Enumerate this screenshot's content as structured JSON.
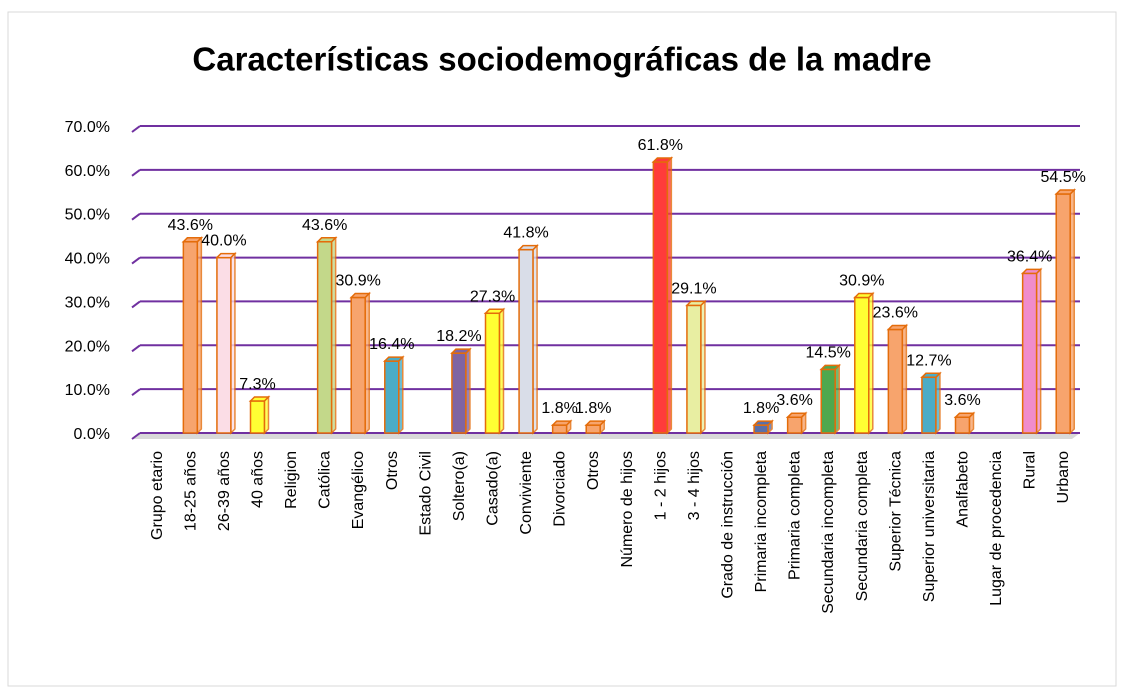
{
  "chart_data": {
    "type": "bar",
    "title": "Características sociodemográficas de la madre",
    "categories": [
      "Grupo etario",
      "18-25 años",
      "26-39 años",
      "40 años",
      "Religion",
      "Católica",
      "Evangélico",
      "Otros",
      "Estado Civil",
      "Soltero(a)",
      "Casado(a)",
      "Conviviente",
      "Divorciado",
      "Otros",
      "Número de hijos",
      "1 - 2 hijos",
      "3 - 4 hijos",
      "Grado de instrucción",
      "Primaria incompleta",
      "Primaria completa",
      "Secundaria incompleta",
      "Secundaria completa",
      "Superior Técnica",
      "Superior universitaria",
      "Analfabeto",
      "Lugar de procedencia",
      "Rural",
      "Urbano"
    ],
    "values": [
      null,
      43.6,
      40.0,
      7.3,
      null,
      43.6,
      30.9,
      16.4,
      null,
      18.2,
      27.3,
      41.8,
      1.8,
      1.8,
      null,
      61.8,
      29.1,
      null,
      1.8,
      3.6,
      14.5,
      30.9,
      23.6,
      12.7,
      3.6,
      null,
      36.4,
      54.5
    ],
    "value_labels": [
      null,
      "43.6%",
      "40.0%",
      "7.3%",
      null,
      "43.6%",
      "30.9%",
      "16.4%",
      null,
      "18.2%",
      "27.3%",
      "41.8%",
      "1.8%",
      "1.8%",
      null,
      "61.8%",
      "29.1%",
      null,
      "1.8%",
      "3.6%",
      "14.5%",
      "30.9%",
      "23.6%",
      "12.7%",
      "3.6%",
      null,
      "36.4%",
      "54.5%"
    ],
    "colors": [
      null,
      "#f7a46d",
      "#fbdde6",
      "#ffff33",
      null,
      "#c3d88a",
      "#f7a46d",
      "#4bacc6",
      null,
      "#8064a2",
      "#ffff33",
      "#d9dde8",
      "#f7a46d",
      "#f7a46d",
      null,
      "#ff3b3b",
      "#e8eea2",
      null,
      "#5a6fa8",
      "#f7a46d",
      "#4ea84e",
      "#ffff33",
      "#f7a46d",
      "#4bacc6",
      "#f7a46d",
      null,
      "#f08ccc",
      "#f7a46d"
    ],
    "border_color": "#e46c0a",
    "grid_color": "#7030a0",
    "ylim": [
      0,
      70
    ],
    "yticks": [
      {
        "value": 0,
        "label": "0.0%"
      },
      {
        "value": 10,
        "label": "10.0%"
      },
      {
        "value": 20,
        "label": "20.0%"
      },
      {
        "value": 30,
        "label": "30.0%"
      },
      {
        "value": 40,
        "label": "40.0%"
      },
      {
        "value": 50,
        "label": "50.0%"
      },
      {
        "value": 60,
        "label": "60.0%"
      },
      {
        "value": 70,
        "label": "70.0%"
      }
    ],
    "grid": true
  }
}
